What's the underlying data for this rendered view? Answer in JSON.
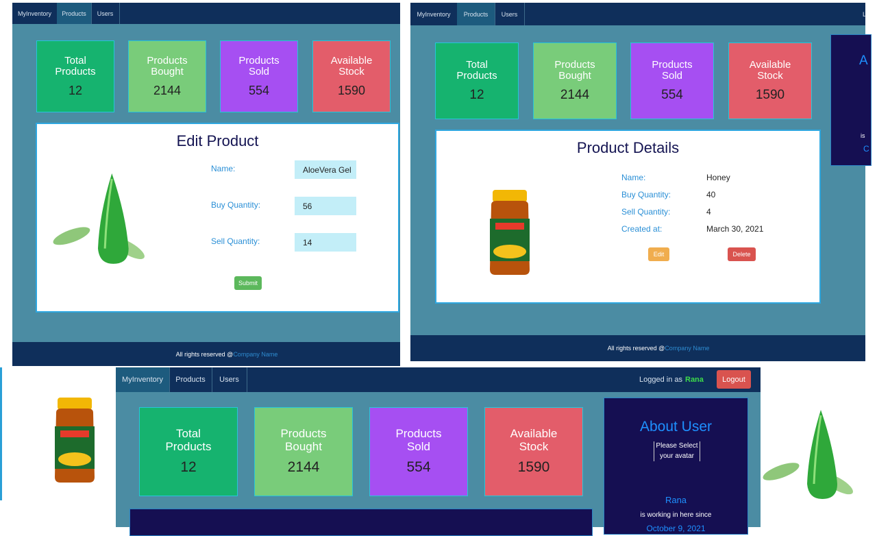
{
  "nav": [
    "MyInventory",
    "Products",
    "Users"
  ],
  "stats": [
    {
      "label": "Total Products",
      "value": 12
    },
    {
      "label": "Products Bought",
      "value": 2144
    },
    {
      "label": "Products Sold",
      "value": 554
    },
    {
      "label": "Available Stock",
      "value": 1590
    }
  ],
  "footer": {
    "text": "All rights reserved @",
    "link": "Company Name"
  },
  "edit_product": {
    "title": "Edit Product",
    "fields": [
      {
        "label": "Name:",
        "value": "AloeVera Gel"
      },
      {
        "label": "Buy Quantity:",
        "value": 56
      },
      {
        "label": "Sell Quantity:",
        "value": 14
      }
    ],
    "submit": "Submit"
  },
  "product_details": {
    "title": "Product Details",
    "rows": [
      {
        "label": "Name:",
        "value": "Honey"
      },
      {
        "label": "Buy Quantity:",
        "value": 40
      },
      {
        "label": "Sell Quantity:",
        "value": 4
      },
      {
        "label": "Created at:",
        "value": "March 30, 2021"
      }
    ],
    "edit": "Edit",
    "delete": "Delete",
    "clipped_texts": [
      "L",
      "A",
      "is",
      "C"
    ]
  },
  "session": {
    "logged_in_as": "Logged in as",
    "user": "Rana",
    "logout": "Logout"
  },
  "about_user": {
    "title": "About User",
    "avatar_prompt": "Please Select your avatar",
    "name": "Rana",
    "since_text": "is working in here since",
    "since_date": "October 9, 2021"
  }
}
